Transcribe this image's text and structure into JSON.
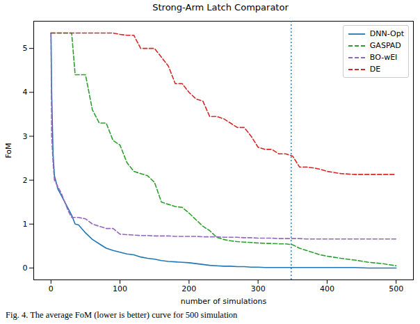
{
  "chart_data": {
    "type": "line",
    "title": "Strong-Arm Latch Comparator",
    "x_label": "number of simulations",
    "y_label": "FoM",
    "caption": "Fig. 4. The average FoM (lower is better) curve for 500 simulation",
    "x": [
      0,
      1,
      3,
      5,
      10,
      15,
      20,
      25,
      30,
      35,
      40,
      50,
      60,
      70,
      80,
      90,
      100,
      110,
      120,
      130,
      140,
      150,
      160,
      170,
      180,
      190,
      200,
      210,
      220,
      230,
      240,
      250,
      260,
      270,
      280,
      290,
      300,
      310,
      320,
      330,
      340,
      350,
      360,
      370,
      380,
      390,
      400,
      420,
      440,
      460,
      480,
      500
    ],
    "series": [
      {
        "name": "DNN-Opt",
        "color": "#1f77b4",
        "line_style": "solid",
        "values": [
          5.35,
          4.0,
          2.6,
          2.1,
          1.8,
          1.65,
          1.5,
          1.35,
          1.2,
          1.0,
          0.98,
          0.8,
          0.65,
          0.55,
          0.45,
          0.4,
          0.36,
          0.32,
          0.3,
          0.25,
          0.22,
          0.2,
          0.17,
          0.15,
          0.14,
          0.13,
          0.12,
          0.1,
          0.08,
          0.06,
          0.05,
          0.04,
          0.04,
          0.03,
          0.03,
          0.02,
          0.02,
          0.01,
          0.01,
          0.01,
          0.01,
          0.01,
          0.01,
          0.01,
          0.01,
          0.01,
          0.01,
          0.01,
          0.01,
          0.0,
          0.0,
          0.0
        ]
      },
      {
        "name": "GASPAD",
        "color": "#2ca02c",
        "line_style": "dashed",
        "values": [
          5.35,
          5.35,
          5.35,
          5.35,
          5.35,
          5.35,
          5.35,
          5.35,
          5.35,
          4.4,
          4.4,
          4.4,
          3.6,
          3.3,
          3.3,
          2.9,
          2.8,
          2.4,
          2.2,
          2.15,
          2.1,
          1.95,
          1.5,
          1.45,
          1.4,
          1.38,
          1.25,
          1.1,
          0.95,
          0.85,
          0.7,
          0.65,
          0.62,
          0.6,
          0.59,
          0.58,
          0.57,
          0.56,
          0.56,
          0.55,
          0.55,
          0.53,
          0.45,
          0.4,
          0.35,
          0.3,
          0.27,
          0.22,
          0.18,
          0.13,
          0.1,
          0.05
        ]
      },
      {
        "name": "BO-wEI",
        "color": "#9467bd",
        "line_style": "dashed",
        "values": [
          5.35,
          3.0,
          2.4,
          2.0,
          1.85,
          1.7,
          1.5,
          1.3,
          1.15,
          1.15,
          1.15,
          1.12,
          1.0,
          0.95,
          0.9,
          0.9,
          0.77,
          0.76,
          0.75,
          0.74,
          0.74,
          0.73,
          0.73,
          0.73,
          0.72,
          0.72,
          0.72,
          0.72,
          0.71,
          0.71,
          0.71,
          0.7,
          0.7,
          0.7,
          0.69,
          0.69,
          0.68,
          0.68,
          0.68,
          0.67,
          0.67,
          0.67,
          0.67,
          0.66,
          0.66,
          0.66,
          0.66,
          0.66,
          0.66,
          0.66,
          0.66,
          0.66
        ]
      },
      {
        "name": "DE",
        "color": "#d62728",
        "line_style": "dashed",
        "values": [
          5.35,
          5.35,
          5.35,
          5.35,
          5.35,
          5.35,
          5.35,
          5.35,
          5.35,
          5.35,
          5.35,
          5.35,
          5.35,
          5.35,
          5.35,
          5.35,
          5.32,
          5.3,
          5.3,
          5.0,
          5.0,
          5.0,
          4.8,
          4.6,
          4.2,
          4.2,
          4.0,
          3.85,
          3.8,
          3.45,
          3.45,
          3.4,
          3.3,
          3.2,
          3.2,
          3.0,
          2.75,
          2.7,
          2.7,
          2.6,
          2.6,
          2.55,
          2.3,
          2.3,
          2.28,
          2.25,
          2.2,
          2.15,
          2.13,
          2.13,
          2.13,
          2.13
        ]
      }
    ],
    "vline": 348,
    "vline_color": "#1f77b4",
    "vline_style": "dotted",
    "xlim": [
      -25,
      525
    ],
    "xticks": [
      0,
      100,
      200,
      300,
      400,
      500
    ],
    "ylim": [
      -0.27,
      5.62
    ],
    "yticks": [
      0,
      1,
      2,
      3,
      4,
      5
    ],
    "grid": false,
    "legend": "upper right"
  }
}
